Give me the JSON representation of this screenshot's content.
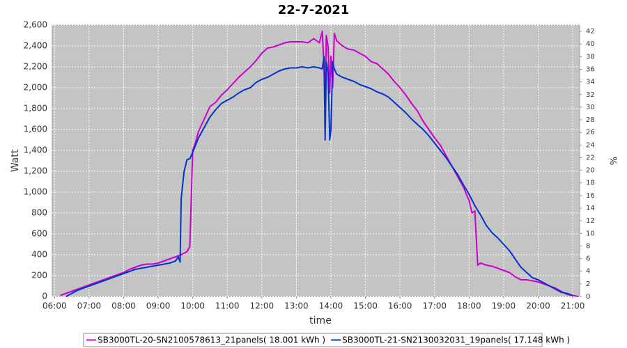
{
  "chart_data": {
    "type": "line",
    "title": "22-7-2021",
    "x_label": "time",
    "y_label": "Watt",
    "y2_label": "%",
    "xlim": [
      "05:56",
      "21:12"
    ],
    "xticks": [
      "06:00",
      "07:00",
      "08:00",
      "09:00",
      "10:00",
      "11:00",
      "12:00",
      "13:00",
      "14:00",
      "15:00",
      "16:00",
      "17:00",
      "18:00",
      "19:00",
      "20:00",
      "21:00"
    ],
    "ylim": [
      0,
      2600
    ],
    "yticks": [
      0,
      200,
      400,
      600,
      800,
      {
        "value": 1000,
        "label": "1,000"
      },
      {
        "value": 1200,
        "label": "1,200"
      },
      {
        "value": 1400,
        "label": "1,400"
      },
      {
        "value": 1600,
        "label": "1,600"
      },
      {
        "value": 1800,
        "label": "1,800"
      },
      {
        "value": 2000,
        "label": "2,000"
      },
      {
        "value": 2200,
        "label": "2,200"
      },
      {
        "value": 2400,
        "label": "2,400"
      },
      {
        "value": 2600,
        "label": "2,600"
      }
    ],
    "y2lim": [
      0,
      43
    ],
    "y2ticks": [
      0,
      2,
      4,
      6,
      8,
      10,
      12,
      14,
      16,
      18,
      20,
      22,
      24,
      26,
      28,
      30,
      32,
      34,
      36,
      38,
      40,
      42
    ],
    "grid": true,
    "series": [
      {
        "name": "SB3000TL-20-SN2100578613_21panels( 18.001 kWh )",
        "color": "#cc00cc",
        "x": [
          "06:10",
          "06:20",
          "06:30",
          "06:40",
          "06:50",
          "07:00",
          "07:10",
          "07:20",
          "07:30",
          "07:40",
          "07:50",
          "08:00",
          "08:10",
          "08:20",
          "08:30",
          "08:40",
          "08:50",
          "09:00",
          "09:10",
          "09:20",
          "09:30",
          "09:40",
          "09:50",
          "09:55",
          "10:00",
          "10:05",
          "10:10",
          "10:20",
          "10:30",
          "10:40",
          "10:50",
          "11:00",
          "11:10",
          "11:20",
          "11:30",
          "11:40",
          "11:50",
          "12:00",
          "12:10",
          "12:20",
          "12:30",
          "12:40",
          "12:50",
          "13:00",
          "13:10",
          "13:20",
          "13:30",
          "13:40",
          "13:45",
          "13:48",
          "13:50",
          "13:52",
          "13:55",
          "13:58",
          "14:00",
          "14:03",
          "14:06",
          "14:10",
          "14:20",
          "14:30",
          "14:40",
          "14:50",
          "15:00",
          "15:10",
          "15:20",
          "15:30",
          "15:40",
          "15:50",
          "16:00",
          "16:10",
          "16:20",
          "16:30",
          "16:40",
          "16:50",
          "17:00",
          "17:10",
          "17:20",
          "17:30",
          "17:40",
          "17:50",
          "18:00",
          "18:05",
          "18:10",
          "18:15",
          "18:20",
          "18:30",
          "18:40",
          "18:50",
          "19:00",
          "19:10",
          "19:20",
          "19:30",
          "19:40",
          "19:50",
          "20:00",
          "20:10",
          "20:20",
          "20:30",
          "20:40",
          "20:50",
          "21:00",
          "21:10"
        ],
        "values": [
          10,
          30,
          50,
          70,
          90,
          110,
          130,
          150,
          170,
          190,
          210,
          230,
          260,
          280,
          300,
          310,
          310,
          320,
          340,
          360,
          380,
          400,
          430,
          480,
          1400,
          1480,
          1580,
          1700,
          1820,
          1860,
          1930,
          1980,
          2040,
          2100,
          2150,
          2200,
          2260,
          2330,
          2380,
          2390,
          2410,
          2430,
          2440,
          2440,
          2440,
          2430,
          2470,
          2430,
          2540,
          2200,
          1800,
          2500,
          2400,
          1950,
          2300,
          2000,
          2520,
          2450,
          2400,
          2370,
          2360,
          2330,
          2300,
          2250,
          2230,
          2180,
          2130,
          2060,
          2000,
          1930,
          1850,
          1780,
          1680,
          1600,
          1520,
          1450,
          1350,
          1250,
          1150,
          1050,
          920,
          800,
          820,
          300,
          320,
          300,
          290,
          270,
          250,
          230,
          190,
          160,
          160,
          150,
          140,
          120,
          100,
          80,
          50,
          20,
          10,
          0
        ]
      },
      {
        "name": "SB3000TL-21-SN2130032031_19panels( 17.148 kWh )",
        "color": "#0033cc",
        "x": [
          "06:20",
          "06:30",
          "06:40",
          "06:50",
          "07:00",
          "07:10",
          "07:20",
          "07:30",
          "07:40",
          "07:50",
          "08:00",
          "08:10",
          "08:20",
          "08:30",
          "08:40",
          "08:50",
          "09:00",
          "09:10",
          "09:20",
          "09:30",
          "09:35",
          "09:38",
          "09:40",
          "09:45",
          "09:50",
          "09:55",
          "10:00",
          "10:05",
          "10:10",
          "10:20",
          "10:30",
          "10:40",
          "10:50",
          "11:00",
          "11:10",
          "11:20",
          "11:30",
          "11:40",
          "11:50",
          "12:00",
          "12:10",
          "12:20",
          "12:30",
          "12:40",
          "12:50",
          "13:00",
          "13:10",
          "13:20",
          "13:30",
          "13:40",
          "13:45",
          "13:48",
          "13:50",
          "13:52",
          "13:55",
          "13:58",
          "14:00",
          "14:03",
          "14:06",
          "14:10",
          "14:20",
          "14:30",
          "14:40",
          "14:50",
          "15:00",
          "15:10",
          "15:20",
          "15:30",
          "15:40",
          "15:50",
          "16:00",
          "16:10",
          "16:20",
          "16:30",
          "16:40",
          "16:50",
          "17:00",
          "17:10",
          "17:20",
          "17:30",
          "17:40",
          "17:50",
          "18:00",
          "18:10",
          "18:20",
          "18:30",
          "18:40",
          "18:50",
          "19:00",
          "19:10",
          "19:20",
          "19:30",
          "19:40",
          "19:50",
          "20:00",
          "20:10",
          "20:20",
          "20:30",
          "20:40",
          "20:50",
          "21:00"
        ],
        "values": [
          0,
          30,
          60,
          80,
          100,
          120,
          140,
          160,
          180,
          200,
          220,
          240,
          260,
          270,
          280,
          290,
          300,
          310,
          320,
          340,
          380,
          330,
          940,
          1200,
          1310,
          1320,
          1380,
          1450,
          1520,
          1620,
          1720,
          1790,
          1850,
          1880,
          1910,
          1950,
          1980,
          2000,
          2050,
          2080,
          2100,
          2130,
          2160,
          2180,
          2190,
          2190,
          2200,
          2190,
          2200,
          2190,
          2180,
          2300,
          1500,
          2250,
          2150,
          1500,
          1600,
          2250,
          2180,
          2130,
          2100,
          2080,
          2060,
          2030,
          2010,
          1990,
          1960,
          1940,
          1910,
          1860,
          1810,
          1760,
          1700,
          1650,
          1600,
          1540,
          1470,
          1400,
          1330,
          1250,
          1170,
          1070,
          980,
          870,
          780,
          680,
          610,
          560,
          500,
          440,
          360,
          280,
          230,
          180,
          160,
          130,
          100,
          70,
          40,
          30,
          10
        ]
      }
    ]
  }
}
